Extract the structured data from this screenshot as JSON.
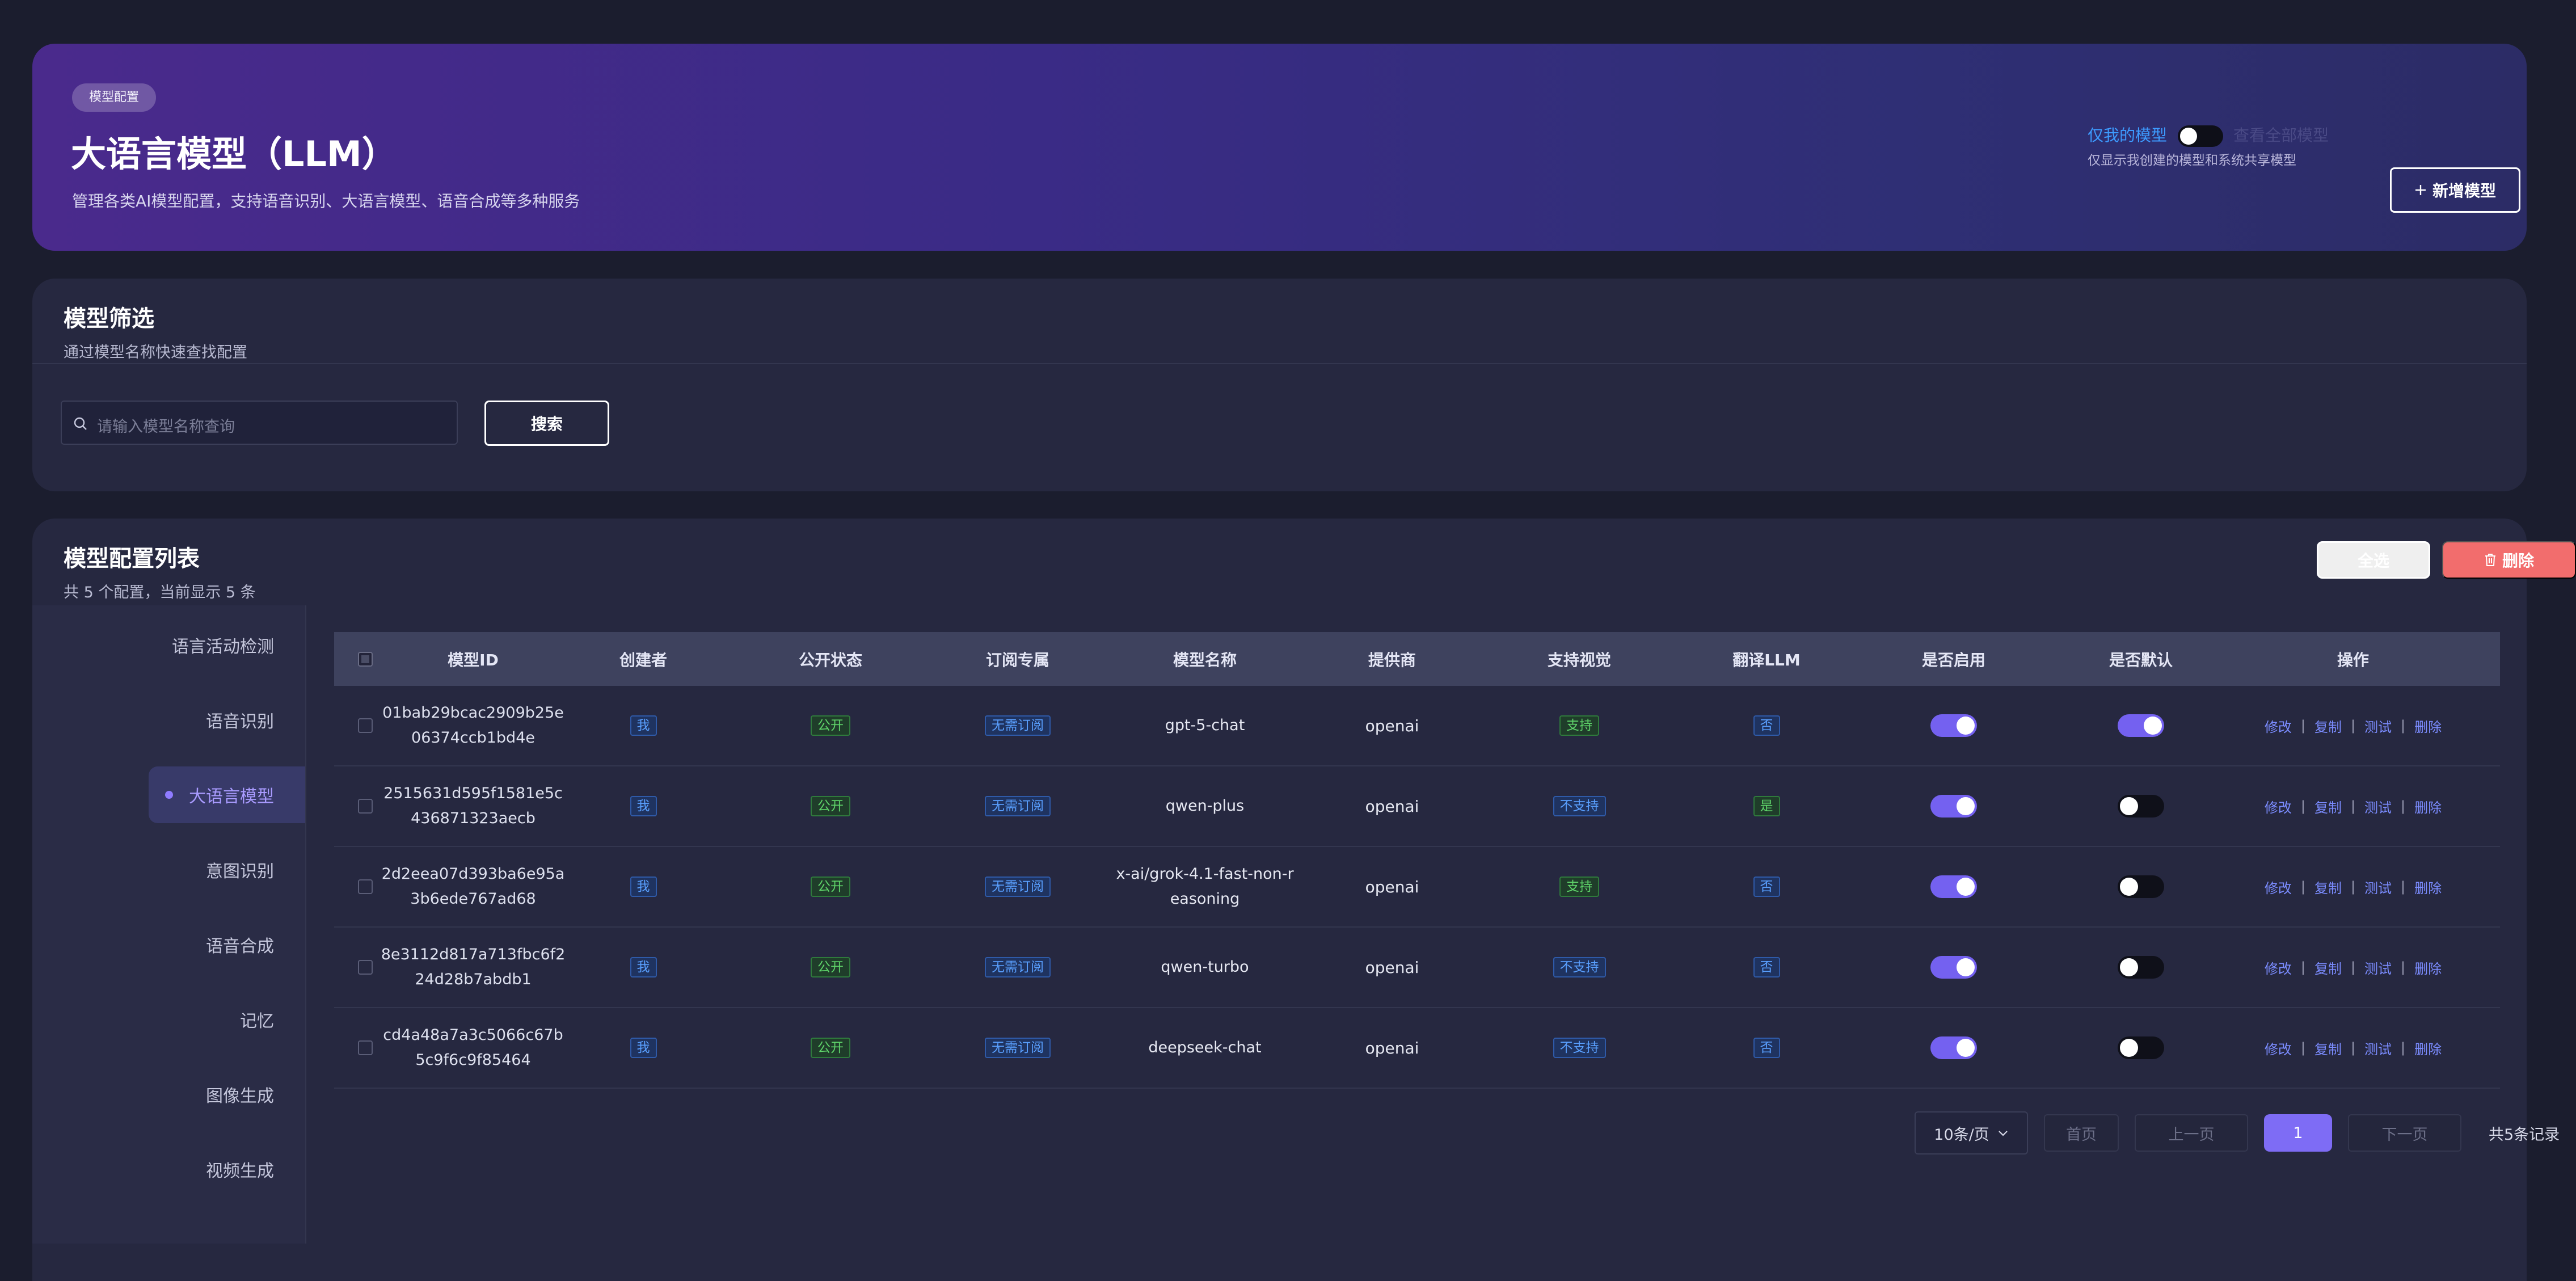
{
  "hero": {
    "badge": "模型配置",
    "title": "大语言模型（LLM）",
    "subtitle": "管理各类AI模型配置，支持语音识别、大语言模型、语音合成等多种服务",
    "mine_label": "仅我的模型",
    "all_label": "查看全部模型",
    "hint": "仅显示我创建的模型和系统共享模型",
    "add_label": "新增模型",
    "add_icon": "plus-icon",
    "toggle_on": false
  },
  "filter": {
    "title": "模型筛选",
    "subtitle": "通过模型名称快速查找配置",
    "search_placeholder": "请输入模型名称查询",
    "search_icon": "search-icon",
    "search_button": "搜索"
  },
  "list": {
    "title": "模型配置列表",
    "subtitle": "共 5 个配置，当前显示 5 条",
    "select_all": "全选",
    "delete": "删除",
    "delete_icon": "trash-icon",
    "accent_color": "#7461f0",
    "danger_color": "#f26d6d"
  },
  "nav": {
    "items": [
      {
        "label": "语言活动检测",
        "active": false
      },
      {
        "label": "语音识别",
        "active": false
      },
      {
        "label": "大语言模型",
        "active": true
      },
      {
        "label": "意图识别",
        "active": false
      },
      {
        "label": "语音合成",
        "active": false
      },
      {
        "label": "记忆",
        "active": false
      },
      {
        "label": "图像生成",
        "active": false
      },
      {
        "label": "视频生成",
        "active": false
      }
    ]
  },
  "table": {
    "headers": {
      "id": "模型ID",
      "creator": "创建者",
      "public": "公开状态",
      "sub": "订阅专属",
      "name": "模型名称",
      "provider": "提供商",
      "vision": "支持视觉",
      "llm": "翻译LLM",
      "enabled": "是否启用",
      "default": "是否默认",
      "ops": "操作"
    },
    "rows": [
      {
        "id1": "01bab29bcac2909b25e",
        "id2": "06374ccb1bd4e",
        "creator": "我",
        "public": "公开",
        "sub": "无需订阅",
        "name1": "gpt-5-chat",
        "name2": "",
        "provider": "openai",
        "vision": "支持",
        "vision_color": "green",
        "llm": "否",
        "llm_color": "blue",
        "enabled": true,
        "default": true
      },
      {
        "id1": "2515631d595f1581e5c",
        "id2": "436871323aecb",
        "creator": "我",
        "public": "公开",
        "sub": "无需订阅",
        "name1": "qwen-plus",
        "name2": "",
        "provider": "openai",
        "vision": "不支持",
        "vision_color": "blue",
        "llm": "是",
        "llm_color": "green",
        "enabled": true,
        "default": false
      },
      {
        "id1": "2d2eea07d393ba6e95a",
        "id2": "3b6ede767ad68",
        "creator": "我",
        "public": "公开",
        "sub": "无需订阅",
        "name1": "x-ai/grok-4.1-fast-non-r",
        "name2": "easoning",
        "provider": "openai",
        "vision": "支持",
        "vision_color": "green",
        "llm": "否",
        "llm_color": "blue",
        "enabled": true,
        "default": false
      },
      {
        "id1": "8e3112d817a713fbc6f2",
        "id2": "24d28b7abdb1",
        "creator": "我",
        "public": "公开",
        "sub": "无需订阅",
        "name1": "qwen-turbo",
        "name2": "",
        "provider": "openai",
        "vision": "不支持",
        "vision_color": "blue",
        "llm": "否",
        "llm_color": "blue",
        "enabled": true,
        "default": false
      },
      {
        "id1": "cd4a48a7a3c5066c67b",
        "id2": "5c9f6c9f85464",
        "creator": "我",
        "public": "公开",
        "sub": "无需订阅",
        "name1": "deepseek-chat",
        "name2": "",
        "provider": "openai",
        "vision": "不支持",
        "vision_color": "blue",
        "llm": "否",
        "llm_color": "blue",
        "enabled": true,
        "default": false
      }
    ],
    "ops": {
      "edit": "修改",
      "copy": "复制",
      "test": "测试",
      "del": "删除"
    }
  },
  "pager": {
    "page_size": "10条/页",
    "first": "首页",
    "prev": "上一页",
    "current": "1",
    "next": "下一页",
    "total": "共5条记录"
  }
}
